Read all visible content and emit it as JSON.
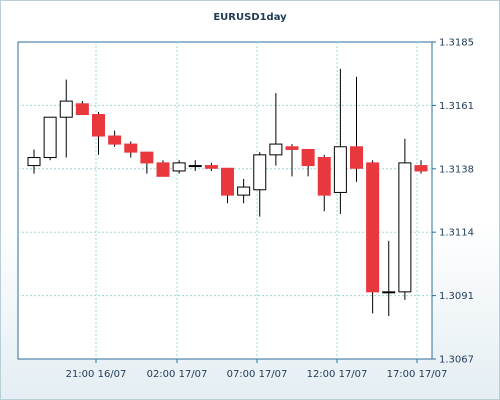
{
  "chart_data": {
    "type": "candlestick",
    "title": "EURUSD1day",
    "ylim": [
      1.3067,
      1.3185
    ],
    "y_ticks": [
      "1.3185",
      "1.3161",
      "1.3138",
      "1.3114",
      "1.3091",
      "1.3067"
    ],
    "x_ticks": [
      "21:00 16/07",
      "02:00 17/07",
      "07:00 17/07",
      "12:00 17/07",
      "17:00 17/07"
    ],
    "grid": true,
    "colors": {
      "up": "#ffffff",
      "down": "#e8383d",
      "wick": "#000000",
      "grid": "#9fd6d6",
      "axis": "#2c6e9b"
    },
    "candles": [
      {
        "open": 1.3139,
        "high": 1.3145,
        "low": 1.3136,
        "close": 1.3142
      },
      {
        "open": 1.3142,
        "high": 1.3157,
        "low": 1.3141,
        "close": 1.3157
      },
      {
        "open": 1.3157,
        "high": 1.3171,
        "low": 1.3142,
        "close": 1.3163
      },
      {
        "open": 1.3162,
        "high": 1.3163,
        "low": 1.3158,
        "close": 1.3158
      },
      {
        "open": 1.3158,
        "high": 1.3159,
        "low": 1.3143,
        "close": 1.315
      },
      {
        "open": 1.315,
        "high": 1.3152,
        "low": 1.3146,
        "close": 1.3147
      },
      {
        "open": 1.3147,
        "high": 1.3148,
        "low": 1.3142,
        "close": 1.3144
      },
      {
        "open": 1.3144,
        "high": 1.3144,
        "low": 1.3136,
        "close": 1.314
      },
      {
        "open": 1.314,
        "high": 1.3141,
        "low": 1.3135,
        "close": 1.3135
      },
      {
        "open": 1.3137,
        "high": 1.3141,
        "low": 1.3136,
        "close": 1.314
      },
      {
        "open": 1.3139,
        "high": 1.3141,
        "low": 1.3137,
        "close": 1.3139
      },
      {
        "open": 1.3139,
        "high": 1.314,
        "low": 1.3137,
        "close": 1.3138
      },
      {
        "open": 1.3138,
        "high": 1.3138,
        "low": 1.3125,
        "close": 1.3128
      },
      {
        "open": 1.3128,
        "high": 1.3134,
        "low": 1.3125,
        "close": 1.3131
      },
      {
        "open": 1.313,
        "high": 1.3144,
        "low": 1.312,
        "close": 1.3143
      },
      {
        "open": 1.3143,
        "high": 1.3166,
        "low": 1.3139,
        "close": 1.3147
      },
      {
        "open": 1.3146,
        "high": 1.3147,
        "low": 1.3135,
        "close": 1.3145
      },
      {
        "open": 1.3145,
        "high": 1.3145,
        "low": 1.3135,
        "close": 1.3139
      },
      {
        "open": 1.3142,
        "high": 1.3143,
        "low": 1.3122,
        "close": 1.3128
      },
      {
        "open": 1.3129,
        "high": 1.3175,
        "low": 1.3121,
        "close": 1.3146
      },
      {
        "open": 1.3146,
        "high": 1.3172,
        "low": 1.3133,
        "close": 1.3138
      },
      {
        "open": 1.314,
        "high": 1.3141,
        "low": 1.3084,
        "close": 1.3092
      },
      {
        "open": 1.3092,
        "high": 1.3111,
        "low": 1.3083,
        "close": 1.3092
      },
      {
        "open": 1.3092,
        "high": 1.3149,
        "low": 1.3089,
        "close": 1.314
      },
      {
        "open": 1.3139,
        "high": 1.3141,
        "low": 1.3136,
        "close": 1.3137
      }
    ]
  }
}
